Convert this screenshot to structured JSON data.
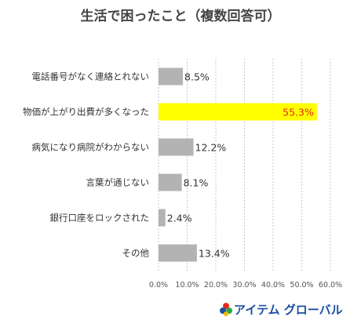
{
  "chart_data": {
    "type": "bar",
    "orientation": "horizontal",
    "title": "生活で困ったこと（複数回答可）",
    "categories": [
      "電話番号がなく連絡とれない",
      "物価が上がり出費が多くなった",
      "病気になり病院がわからない",
      "言葉が通じない",
      "銀行口座をロックされた",
      "その他"
    ],
    "values": [
      8.5,
      55.3,
      12.2,
      8.1,
      2.4,
      13.4
    ],
    "value_labels": [
      "8.5%",
      "55.3%",
      "12.2%",
      "8.1%",
      "2.4%",
      "13.4%"
    ],
    "highlight_index": 1,
    "xlim": [
      0,
      60
    ],
    "xticks": [
      "0.0%",
      "10.0%",
      "20.0%",
      "30.0%",
      "40.0%",
      "50.0%",
      "60.0%"
    ],
    "grid": "vertical-dashed",
    "colors": {
      "bar": "#b3b3b3",
      "highlight_bar": "#ffff00",
      "highlight_label": "#e8281e"
    }
  },
  "logo": {
    "text": "アイテム グローバル",
    "colors": [
      "#e8281e",
      "#1b4fa3",
      "#2aa84a",
      "#f5b800"
    ]
  }
}
